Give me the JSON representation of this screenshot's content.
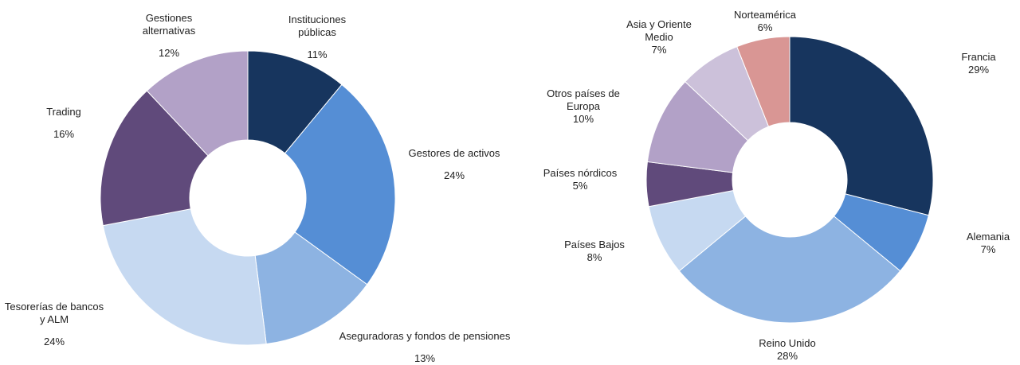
{
  "chart_data": [
    {
      "type": "donut",
      "categories": [
        "Instituciones públicas",
        "Gestores de activos",
        "Aseguradoras y fondos de pensiones",
        "Tesorerías de bancos y ALM",
        "Trading",
        "Gestiones alternativas"
      ],
      "values": [
        11,
        24,
        13,
        24,
        16,
        12
      ],
      "value_labels": [
        "11%",
        "24%",
        "13%",
        "24%",
        "16%",
        "12%"
      ],
      "colors": [
        "#17355e",
        "#558ed5",
        "#8db3e2",
        "#c6d9f1",
        "#604a7b",
        "#b2a1c7"
      ]
    },
    {
      "type": "donut",
      "categories": [
        "Francia",
        "Alemania",
        "Reino Unido",
        "Países Bajos",
        "Países nórdicos",
        "Otros países de Europa",
        "Asia y Oriente Medio",
        "Norteamérica"
      ],
      "values": [
        29,
        7,
        28,
        8,
        5,
        10,
        7,
        6
      ],
      "value_labels": [
        "29%",
        "7%",
        "28%",
        "8%",
        "5%",
        "10%",
        "7%",
        "6%"
      ],
      "colors": [
        "#17355e",
        "#558ed5",
        "#8db3e2",
        "#c6d9f1",
        "#604a7b",
        "#b2a1c7",
        "#ccc1da",
        "#d99694"
      ]
    }
  ]
}
